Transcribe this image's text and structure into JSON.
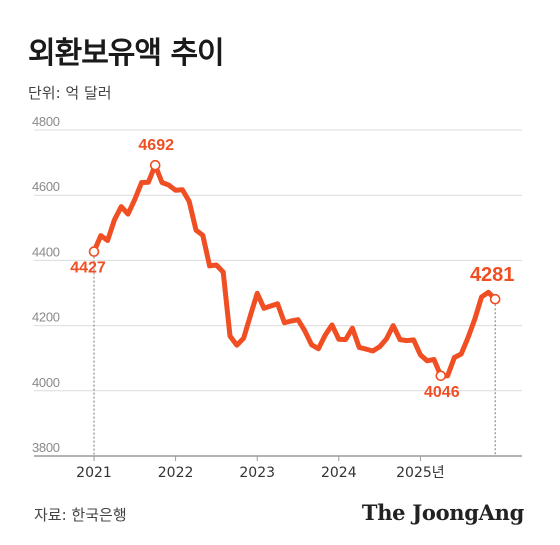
{
  "header": {
    "title": "외환보유액 추이",
    "unit": "단위: 억 달러"
  },
  "footer": {
    "source": "자료: 한국은행",
    "brand": "The JoongAng"
  },
  "colors": {
    "line": "#f04e23",
    "grid": "#dcdcdc",
    "axis": "#9a9a9a"
  },
  "chart_data": {
    "type": "line",
    "title": "외환보유액 추이",
    "ylabel": "단위: 억 달러",
    "xlabel": "",
    "ylim": [
      3800,
      4800
    ],
    "yticks": [
      4800,
      4600,
      4400,
      4200,
      4000,
      3800
    ],
    "xticks": [
      "2021",
      "2022",
      "2023",
      "2024",
      "2025년"
    ],
    "grid": true,
    "series": [
      {
        "x": [
          "2021-01",
          "2021-02",
          "2021-03",
          "2021-04",
          "2021-05",
          "2021-06",
          "2021-07",
          "2021-08",
          "2021-09",
          "2021-10",
          "2021-11",
          "2021-12",
          "2022-01",
          "2022-02",
          "2022-03",
          "2022-04",
          "2022-05",
          "2022-06",
          "2022-07",
          "2022-08",
          "2022-09",
          "2022-10",
          "2022-11",
          "2022-12",
          "2023-01",
          "2023-02",
          "2023-03",
          "2023-04",
          "2023-05",
          "2023-06",
          "2023-07",
          "2023-08",
          "2023-09",
          "2023-10",
          "2023-11",
          "2023-12",
          "2024-01",
          "2024-02",
          "2024-03",
          "2024-04",
          "2024-05",
          "2024-06",
          "2024-07",
          "2024-08",
          "2024-09",
          "2024-10",
          "2024-11",
          "2024-12",
          "2025-01",
          "2025-02",
          "2025-03",
          "2025-04",
          "2025-05",
          "2025-06",
          "2025-07",
          "2025-08",
          "2025-09",
          "2025-10",
          "2025-11",
          "2025-12"
        ],
        "values": [
          4427,
          4476,
          4461,
          4524,
          4565,
          4542,
          4587,
          4639,
          4640,
          4692,
          4639,
          4631,
          4615,
          4617,
          4581,
          4493,
          4477,
          4383,
          4386,
          4364,
          4168,
          4140,
          4161,
          4231,
          4299,
          4253,
          4260,
          4267,
          4209,
          4214,
          4218,
          4184,
          4141,
          4129,
          4171,
          4202,
          4158,
          4157,
          4192,
          4133,
          4128,
          4122,
          4135,
          4159,
          4200,
          4157,
          4154,
          4156,
          4110,
          4092,
          4096,
          4046,
          4046,
          4102,
          4113,
          4163,
          4220,
          4288,
          4302,
          4281
        ]
      }
    ],
    "annotations": [
      {
        "label": "4427",
        "x": "2021-01",
        "y": 4427
      },
      {
        "label": "4692",
        "x": "2021-10",
        "y": 4692
      },
      {
        "label": "4046",
        "x": "2025-04",
        "y": 4046
      },
      {
        "label": "4281",
        "x": "2025-12",
        "y": 4281
      }
    ]
  }
}
